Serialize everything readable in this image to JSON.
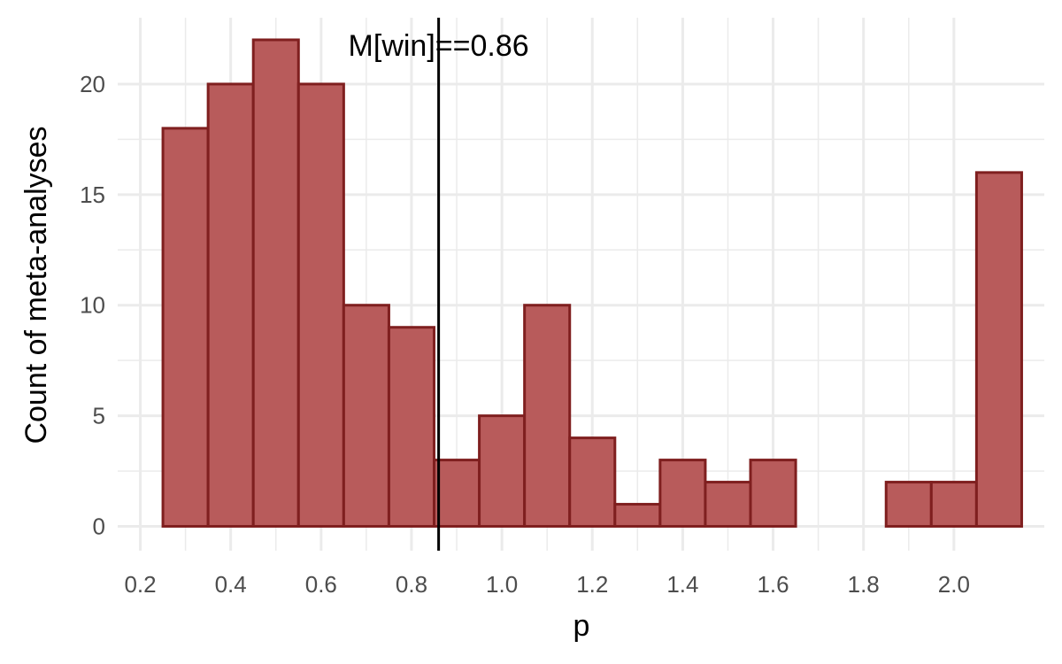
{
  "chart_data": {
    "type": "bar",
    "subtype": "histogram",
    "xlabel": "p",
    "ylabel": "Count of meta-analyses",
    "xlim": [
      0.15,
      2.2
    ],
    "ylim": [
      -1.1,
      23
    ],
    "x_ticks": [
      0.2,
      0.4,
      0.6,
      0.8,
      1.0,
      1.2,
      1.4,
      1.6,
      1.8,
      2.0
    ],
    "x_tick_labels": [
      "0.2",
      "0.4",
      "0.6",
      "0.8",
      "1.0",
      "1.2",
      "1.4",
      "1.6",
      "1.8",
      "2.0"
    ],
    "y_ticks": [
      0,
      5,
      10,
      15,
      20
    ],
    "y_tick_labels": [
      "0",
      "5",
      "10",
      "15",
      "20"
    ],
    "bin_width": 0.1,
    "bin_centers": [
      0.3,
      0.4,
      0.5,
      0.6,
      0.7,
      0.8,
      0.9,
      1.0,
      1.1,
      1.2,
      1.3,
      1.4,
      1.5,
      1.6,
      1.7,
      1.8,
      1.9,
      2.0,
      2.1
    ],
    "values": [
      18,
      20,
      22,
      20,
      10,
      9,
      3,
      5,
      10,
      4,
      1,
      3,
      2,
      3,
      0,
      0,
      2,
      2,
      16
    ],
    "vline": {
      "x": 0.86,
      "label": "M[win]==0.86"
    },
    "grid": true,
    "colors": {
      "bar_fill": "#b85b5b",
      "bar_stroke": "#7f1f1f",
      "grid": "#ebebeb",
      "vline": "#000000"
    }
  }
}
